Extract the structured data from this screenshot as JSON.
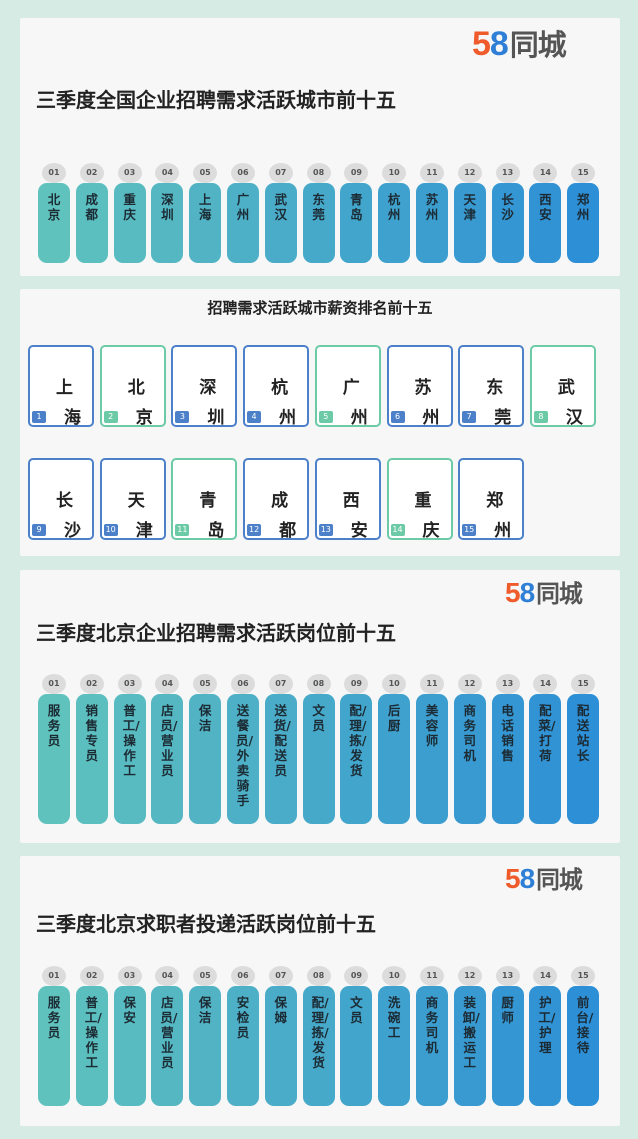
{
  "logo": {
    "digit5": "5",
    "digit8": "8",
    "name": "同城"
  },
  "colors": {
    "pill_start": "#5fc2bd",
    "pill_end": "#2d8fd6",
    "card_blue": "#4c80c9",
    "card_green": "#6dcaa6",
    "background": "#d5ebe4"
  },
  "panel1": {
    "title": "三季度全国企业招聘需求活跃城市前十五",
    "items": [
      "北京",
      "成都",
      "重庆",
      "深圳",
      "上海",
      "广州",
      "武汉",
      "东莞",
      "青岛",
      "杭州",
      "苏州",
      "天津",
      "长沙",
      "西安",
      "郑州"
    ]
  },
  "panel2": {
    "title": "招聘需求活跃城市薪资排名前十五",
    "items": [
      "上海",
      "北京",
      "深圳",
      "杭州",
      "广州",
      "苏州",
      "东莞",
      "武汉",
      "长沙",
      "天津",
      "青岛",
      "成都",
      "西安",
      "重庆",
      "郑州"
    ]
  },
  "panel3": {
    "title": "三季度北京企业招聘需求活跃岗位前十五",
    "items": [
      "服务员",
      "销售专员",
      "普工/操作工",
      "店员/营业员",
      "保洁",
      "送餐员/外卖骑手",
      "送货/配送员",
      "文员",
      "配/理/拣/发货",
      "后厨",
      "美容师",
      "商务司机",
      "电话销售",
      "配菜/打荷",
      "配送站长"
    ]
  },
  "panel4": {
    "title": "三季度北京求职者投递活跃岗位前十五",
    "items": [
      "服务员",
      "普工/操作工",
      "保安",
      "店员/营业员",
      "保洁",
      "安检员",
      "保姆",
      "配/理/拣/发货",
      "文员",
      "洗碗工",
      "商务司机",
      "装卸/搬运工",
      "厨师",
      "护工/护理",
      "前台/接待"
    ]
  },
  "ranks": [
    "01",
    "02",
    "03",
    "04",
    "05",
    "06",
    "07",
    "08",
    "09",
    "10",
    "11",
    "12",
    "13",
    "14",
    "15"
  ]
}
